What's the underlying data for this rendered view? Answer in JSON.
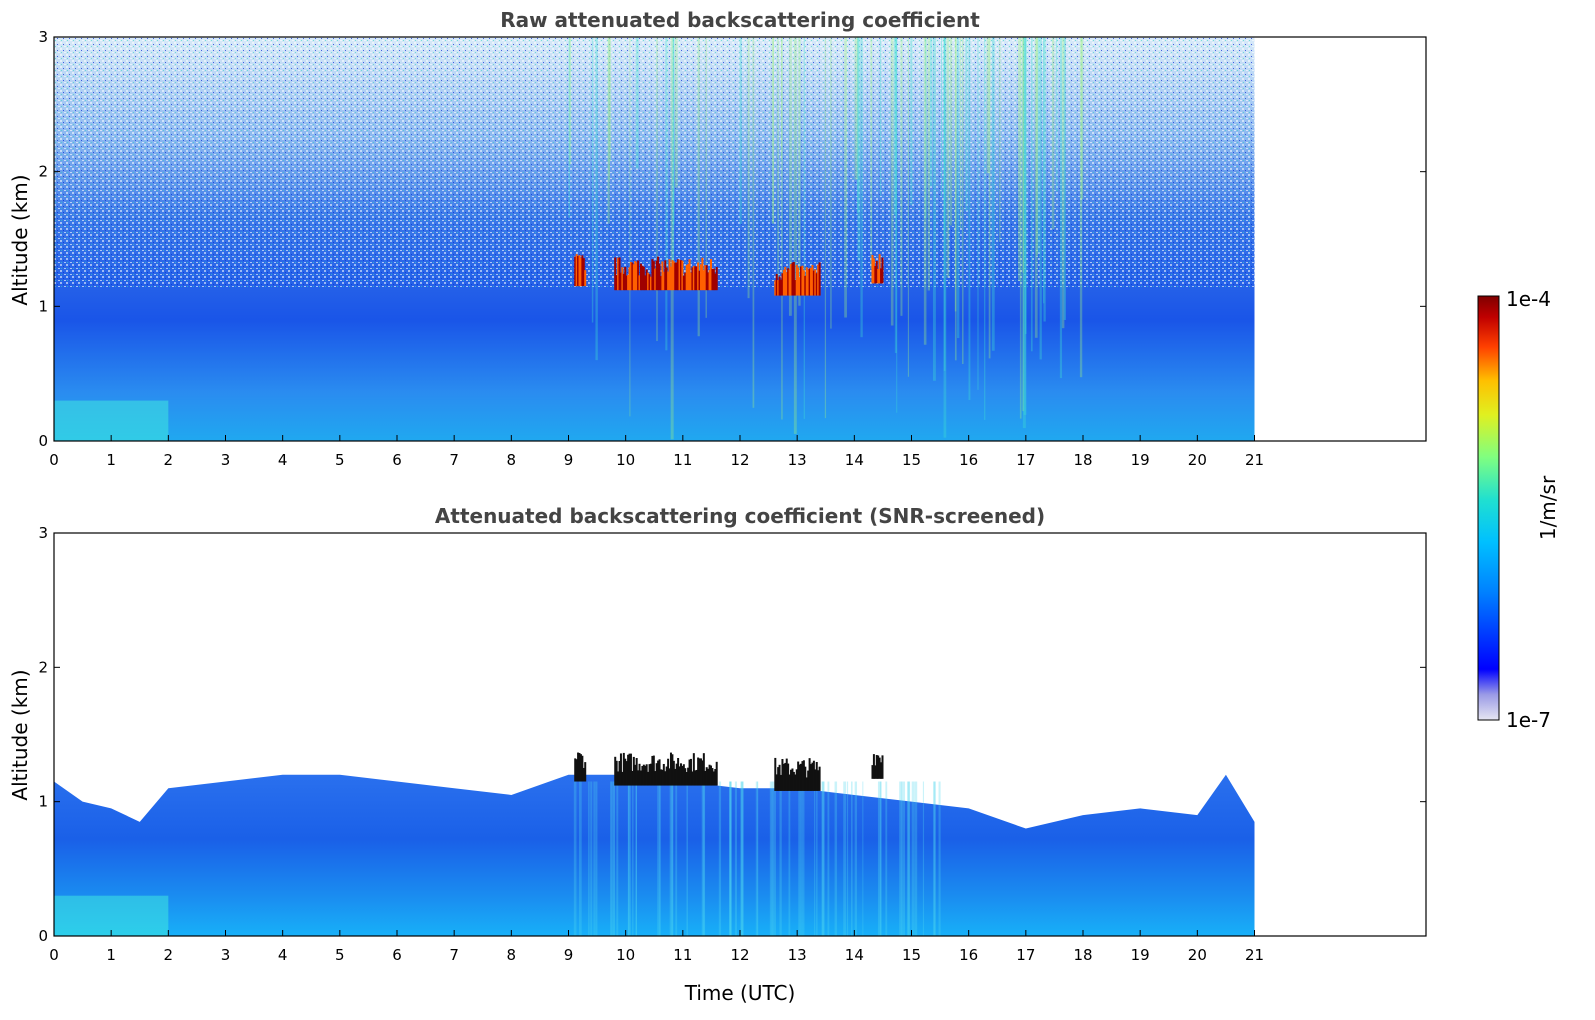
{
  "chart_data": [
    {
      "type": "heatmap",
      "title": "Raw attenuated backscattering coefficient",
      "ylabel": "Altitude (km)",
      "xlabel": "",
      "xlim": [
        0,
        24
      ],
      "ylim": [
        0,
        3
      ],
      "xticks": [
        0,
        1,
        2,
        3,
        4,
        5,
        6,
        7,
        8,
        9,
        10,
        11,
        12,
        13,
        14,
        15,
        16,
        17,
        18,
        19,
        20,
        21
      ],
      "yticks": [
        0,
        1,
        2,
        3
      ],
      "data_extent_hours": [
        0,
        21
      ],
      "cloud_layers": [
        {
          "t_start": 9.1,
          "t_end": 9.3,
          "alt_km": 1.2
        },
        {
          "t_start": 9.8,
          "t_end": 11.6,
          "alt_km": 1.17
        },
        {
          "t_start": 12.6,
          "t_end": 13.4,
          "alt_km": 1.13
        },
        {
          "t_start": 14.3,
          "t_end": 14.5,
          "alt_km": 1.22
        }
      ]
    },
    {
      "type": "heatmap",
      "title": "Attenuated backscattering coefficient (SNR-screened)",
      "ylabel": "Altitude (km)",
      "xlabel": "Time (UTC)",
      "xlim": [
        0,
        24
      ],
      "ylim": [
        0,
        3
      ],
      "xticks": [
        0,
        1,
        2,
        3,
        4,
        5,
        6,
        7,
        8,
        9,
        10,
        11,
        12,
        13,
        14,
        15,
        16,
        17,
        18,
        19,
        20,
        21
      ],
      "yticks": [
        0,
        1,
        2,
        3
      ],
      "data_extent_hours": [
        0,
        21
      ],
      "boundary_layer_top_km": [
        [
          0,
          1.15
        ],
        [
          0.5,
          1.0
        ],
        [
          1,
          0.95
        ],
        [
          1.5,
          0.85
        ],
        [
          2,
          1.1
        ],
        [
          3,
          1.15
        ],
        [
          4,
          1.2
        ],
        [
          5,
          1.2
        ],
        [
          6,
          1.15
        ],
        [
          7,
          1.1
        ],
        [
          8,
          1.05
        ],
        [
          9,
          1.2
        ],
        [
          10,
          1.2
        ],
        [
          11,
          1.15
        ],
        [
          12,
          1.1
        ],
        [
          13,
          1.1
        ],
        [
          14,
          1.05
        ],
        [
          15,
          1.0
        ],
        [
          16,
          0.95
        ],
        [
          17,
          0.8
        ],
        [
          18,
          0.9
        ],
        [
          19,
          0.95
        ],
        [
          20,
          0.9
        ],
        [
          20.5,
          1.2
        ],
        [
          21,
          0.85
        ]
      ]
    }
  ],
  "colorbar": {
    "max_label": "1e-4",
    "min_label": "1e-7",
    "unit_label": "1/m/sr",
    "scale": "log",
    "range": [
      1e-07,
      0.0001
    ]
  }
}
